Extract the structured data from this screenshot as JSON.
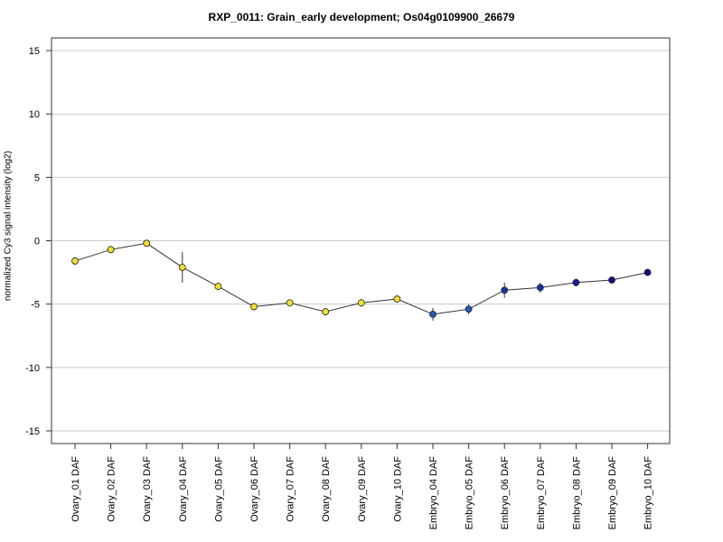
{
  "chart_data": {
    "type": "line",
    "title": "RXP_0011: Grain_early development; Os04g0109900_26679",
    "ylabel": "normalized Cy3 signal intensity (log2)",
    "xlabel": "",
    "ylim": [
      -16,
      16
    ],
    "yticks": [
      -15,
      -10,
      -5,
      0,
      5,
      10,
      15
    ],
    "grid": true,
    "categories": [
      "Ovary_01 DAF",
      "Ovary_02 DAF",
      "Ovary_03 DAF",
      "Ovary_04 DAF",
      "Ovary_05 DAF",
      "Ovary_06 DAF",
      "Ovary_07 DAF",
      "Ovary_08 DAF",
      "Ovary_09 DAF",
      "Ovary_10 DAF",
      "Embryo_04 DAF",
      "Embryo_05 DAF",
      "Embryo_06 DAF",
      "Embryo_07 DAF",
      "Embryo_08 DAF",
      "Embryo_09 DAF",
      "Embryo_10 DAF"
    ],
    "values": [
      -1.6,
      -0.7,
      -0.2,
      -2.1,
      -3.6,
      -5.2,
      -4.9,
      -5.6,
      -4.9,
      -4.6,
      -5.8,
      -5.4,
      -3.9,
      -3.7,
      -3.3,
      -3.1,
      -2.5
    ],
    "error": [
      0.3,
      0.2,
      0.2,
      1.2,
      0.3,
      0.3,
      0.2,
      0.2,
      0.3,
      0.2,
      0.5,
      0.4,
      0.6,
      0.4,
      0.3,
      0.2,
      0.2
    ],
    "point_colors": [
      "#f2e12e",
      "#f2e12e",
      "#f2e12e",
      "#f2e12e",
      "#f2e12e",
      "#f2e12e",
      "#f2e12e",
      "#f2e12e",
      "#f2e12e",
      "#f2e12e",
      "#2a55b8",
      "#2a55b8",
      "#1a35a8",
      "#1a2ea0",
      "#141e96",
      "#100f8a",
      "#0a0a80"
    ],
    "line_color": "#333333"
  }
}
